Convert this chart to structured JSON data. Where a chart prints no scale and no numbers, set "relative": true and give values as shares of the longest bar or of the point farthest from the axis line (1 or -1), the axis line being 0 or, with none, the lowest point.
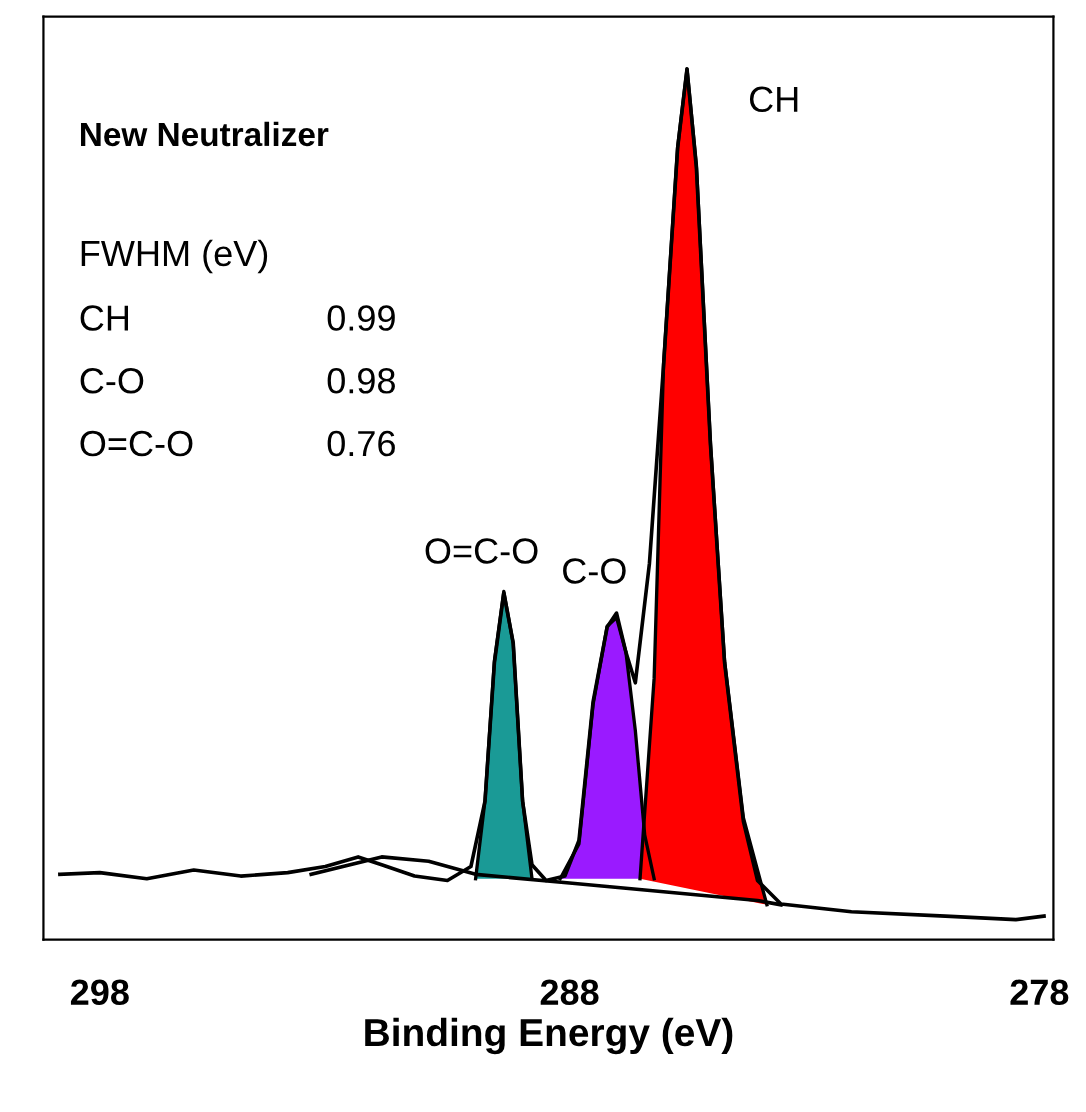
{
  "chart_data": {
    "type": "line",
    "title": "New Neutralizer",
    "xlabel": "Binding Energy (eV)",
    "relative": true,
    "xlim": [
      299.2,
      277.7
    ],
    "xticks": [
      298,
      288,
      278
    ],
    "grid": false,
    "marker": "none",
    "line_style": "solid",
    "series": [
      {
        "type": "area",
        "color": "#1a9a96",
        "x": [
          290.0,
          289.8,
          289.6,
          289.4,
          289.2,
          289.0,
          288.8
        ],
        "values": [
          0.07,
          0.16,
          0.32,
          0.4,
          0.34,
          0.16,
          0.07
        ]
      },
      {
        "type": "area",
        "color": "#9a1aff",
        "x": [
          288.2,
          287.8,
          287.5,
          287.2,
          287.0,
          286.8,
          286.6,
          286.4,
          286.2
        ],
        "values": [
          0.07,
          0.11,
          0.27,
          0.36,
          0.37,
          0.33,
          0.24,
          0.12,
          0.07
        ]
      },
      {
        "type": "area",
        "color": "#ff0000",
        "x": [
          286.5,
          286.2,
          286.0,
          285.7,
          285.5,
          285.3,
          285.0,
          284.7,
          284.3,
          283.8
        ],
        "values": [
          0.07,
          0.3,
          0.66,
          0.91,
          1,
          0.89,
          0.57,
          0.32,
          0.14,
          0.04
        ]
      },
      {
        "type": "line",
        "color": "#000000",
        "x": [
          293.5,
          292,
          291,
          290,
          288,
          286,
          284,
          283.5
        ],
        "values": [
          0.075,
          0.095,
          0.09,
          0.075,
          0.065,
          0.055,
          0.045,
          0.04
        ]
      },
      {
        "color": "#000000",
        "x": [
          298.85,
          298,
          297,
          296,
          295,
          294,
          293.2,
          292.5,
          292,
          291.3,
          290.6,
          290.1,
          289.8,
          289.6,
          289.4,
          289.2,
          289.0,
          288.8,
          288.5,
          288.1,
          287.8,
          287.5,
          287.2,
          287.0,
          286.8,
          286.6,
          286.3,
          286.0,
          285.7,
          285.5,
          285.3,
          285.0,
          284.7,
          284.3,
          284.0,
          283.5,
          282,
          280,
          278.5,
          277.9
        ],
        "values": [
          0.075,
          0.077,
          0.07,
          0.08,
          0.073,
          0.077,
          0.084,
          0.095,
          0.086,
          0.073,
          0.068,
          0.084,
          0.159,
          0.318,
          0.398,
          0.341,
          0.159,
          0.086,
          0.068,
          0.073,
          0.114,
          0.273,
          0.359,
          0.375,
          0.33,
          0.295,
          0.432,
          0.659,
          0.909,
          1,
          0.886,
          0.568,
          0.318,
          0.136,
          0.068,
          0.041,
          0.032,
          0.027,
          0.023,
          0.027
        ]
      }
    ],
    "annotations": [
      {
        "text": "CH",
        "x": 285.5,
        "y": 1
      },
      {
        "text": "C-O",
        "x": 287.0,
        "y": 0.375
      },
      {
        "text": "O=C-O",
        "x": 289.4,
        "y": 0.398
      },
      "FWHM (eV)",
      "CH",
      "0.99",
      "C-O",
      "0.98",
      "O=C-O",
      "0.76"
    ]
  }
}
